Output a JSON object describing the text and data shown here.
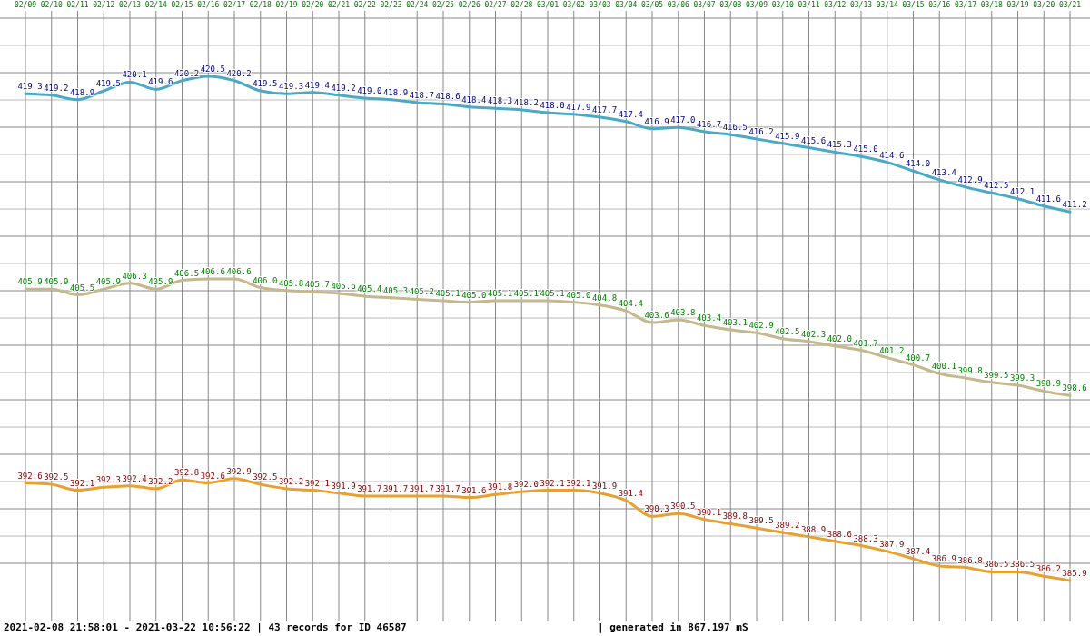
{
  "chart_data": {
    "type": "line",
    "categories": [
      "02/09",
      "02/10",
      "02/11",
      "02/12",
      "02/13",
      "02/14",
      "02/15",
      "02/16",
      "02/17",
      "02/18",
      "02/19",
      "02/20",
      "02/21",
      "02/22",
      "02/23",
      "02/24",
      "02/25",
      "02/26",
      "02/27",
      "02/28",
      "03/01",
      "03/02",
      "03/03",
      "03/04",
      "03/05",
      "03/06",
      "03/07",
      "03/08",
      "03/09",
      "03/10",
      "03/11",
      "03/12",
      "03/13",
      "03/14",
      "03/15",
      "03/16",
      "03/17",
      "03/18",
      "03/19",
      "03/20",
      "03/21"
    ],
    "series": [
      {
        "color": "#4aaac6",
        "values": [
          419.3,
          419.2,
          418.9,
          419.5,
          420.1,
          419.6,
          420.2,
          420.5,
          420.2,
          419.5,
          419.3,
          419.4,
          419.2,
          419.0,
          418.9,
          418.7,
          418.6,
          418.4,
          418.3,
          418.2,
          418.0,
          417.9,
          417.7,
          417.4,
          416.9,
          417.0,
          416.7,
          416.5,
          416.2,
          415.9,
          415.6,
          415.3,
          415.0,
          414.6,
          414.0,
          413.4,
          412.9,
          412.5,
          412.1,
          411.6,
          411.2
        ],
        "value_labels": [
          "419.3",
          "419.2",
          "418.9",
          "419.5",
          "420.1",
          "419.6",
          "420.2",
          "420.5",
          "420.2",
          "419.5",
          "419.3",
          "419.4",
          "419.2",
          "419.0",
          "418.9",
          "418.7",
          "418.6",
          "418.4",
          "418.3",
          "418.2",
          "418.0",
          "417.9",
          "417.7",
          "417.4",
          "416.9",
          "417.0",
          "416.7",
          "416.5",
          "416.2",
          "415.9",
          "415.6",
          "415.3",
          "415.0",
          "414.6",
          "414.0",
          "413.4",
          "412.9",
          "412.5",
          "412.1",
          "411.6",
          "411.2"
        ]
      },
      {
        "color": "#c4b88c",
        "values": [
          405.9,
          405.9,
          405.5,
          405.9,
          406.3,
          405.9,
          406.5,
          406.6,
          406.6,
          406.0,
          405.8,
          405.7,
          405.6,
          405.4,
          405.3,
          405.2,
          405.1,
          405.0,
          405.1,
          405.1,
          405.1,
          405.0,
          404.8,
          404.4,
          403.6,
          403.8,
          403.4,
          403.1,
          402.9,
          402.5,
          402.3,
          402.0,
          401.7,
          401.2,
          400.7,
          400.1,
          399.8,
          399.5,
          399.3,
          398.9,
          398.6
        ],
        "value_labels": [
          "405.9",
          "405.9",
          "405.5",
          "405.9",
          "406.3",
          "405.9",
          "406.5",
          "406.6",
          "406.6",
          "406.0",
          "405.8",
          "405.7",
          "405.6",
          "405.4",
          "405.3",
          "405.2",
          "405.1",
          "405.0",
          "405.1",
          "405.1",
          "405.1",
          "405.0",
          "404.8",
          "404.4",
          "403.6",
          "403.8",
          "403.4",
          "403.1",
          "402.9",
          "402.5",
          "402.3",
          "402.0",
          "401.7",
          "401.2",
          "400.7",
          "400.1",
          "399.8",
          "399.5",
          "399.3",
          "398.9",
          "398.6"
        ]
      },
      {
        "color": "#e8a030",
        "values": [
          392.6,
          392.5,
          392.1,
          392.3,
          392.4,
          392.2,
          392.8,
          392.6,
          392.9,
          392.5,
          392.2,
          392.1,
          391.9,
          391.7,
          391.7,
          391.7,
          391.7,
          391.6,
          391.8,
          392.0,
          392.1,
          392.1,
          391.9,
          391.4,
          390.3,
          390.5,
          390.1,
          389.8,
          389.5,
          389.2,
          388.9,
          388.6,
          388.3,
          387.9,
          387.4,
          386.9,
          386.8,
          386.5,
          386.5,
          386.2,
          385.9
        ],
        "value_labels": [
          "392.6",
          "392.5",
          "392.1",
          "392.3",
          "392.4",
          "392.2",
          "392.8",
          "392.6",
          "392.9",
          "392.5",
          "392.2",
          "392.1",
          "391.9",
          "391.7",
          "391.7",
          "391.7",
          "391.7",
          "391.6",
          "391.8",
          "392.0",
          "392.1",
          "392.1",
          "391.9",
          "391.4",
          "390.3",
          "390.5",
          "390.1",
          "389.8",
          "389.5",
          "389.2",
          "388.9",
          "388.6",
          "388.3",
          "387.9",
          "387.4",
          "386.9",
          "386.8",
          "386.5",
          "386.5",
          "386.2",
          "385.9"
        ]
      }
    ],
    "grid": true,
    "annotations": [
      "2021-02-08 21:58:01 - 2021-03-22 10:56:22 | 43 records for ID 46587",
      "| generated in 867.197 mS"
    ]
  }
}
